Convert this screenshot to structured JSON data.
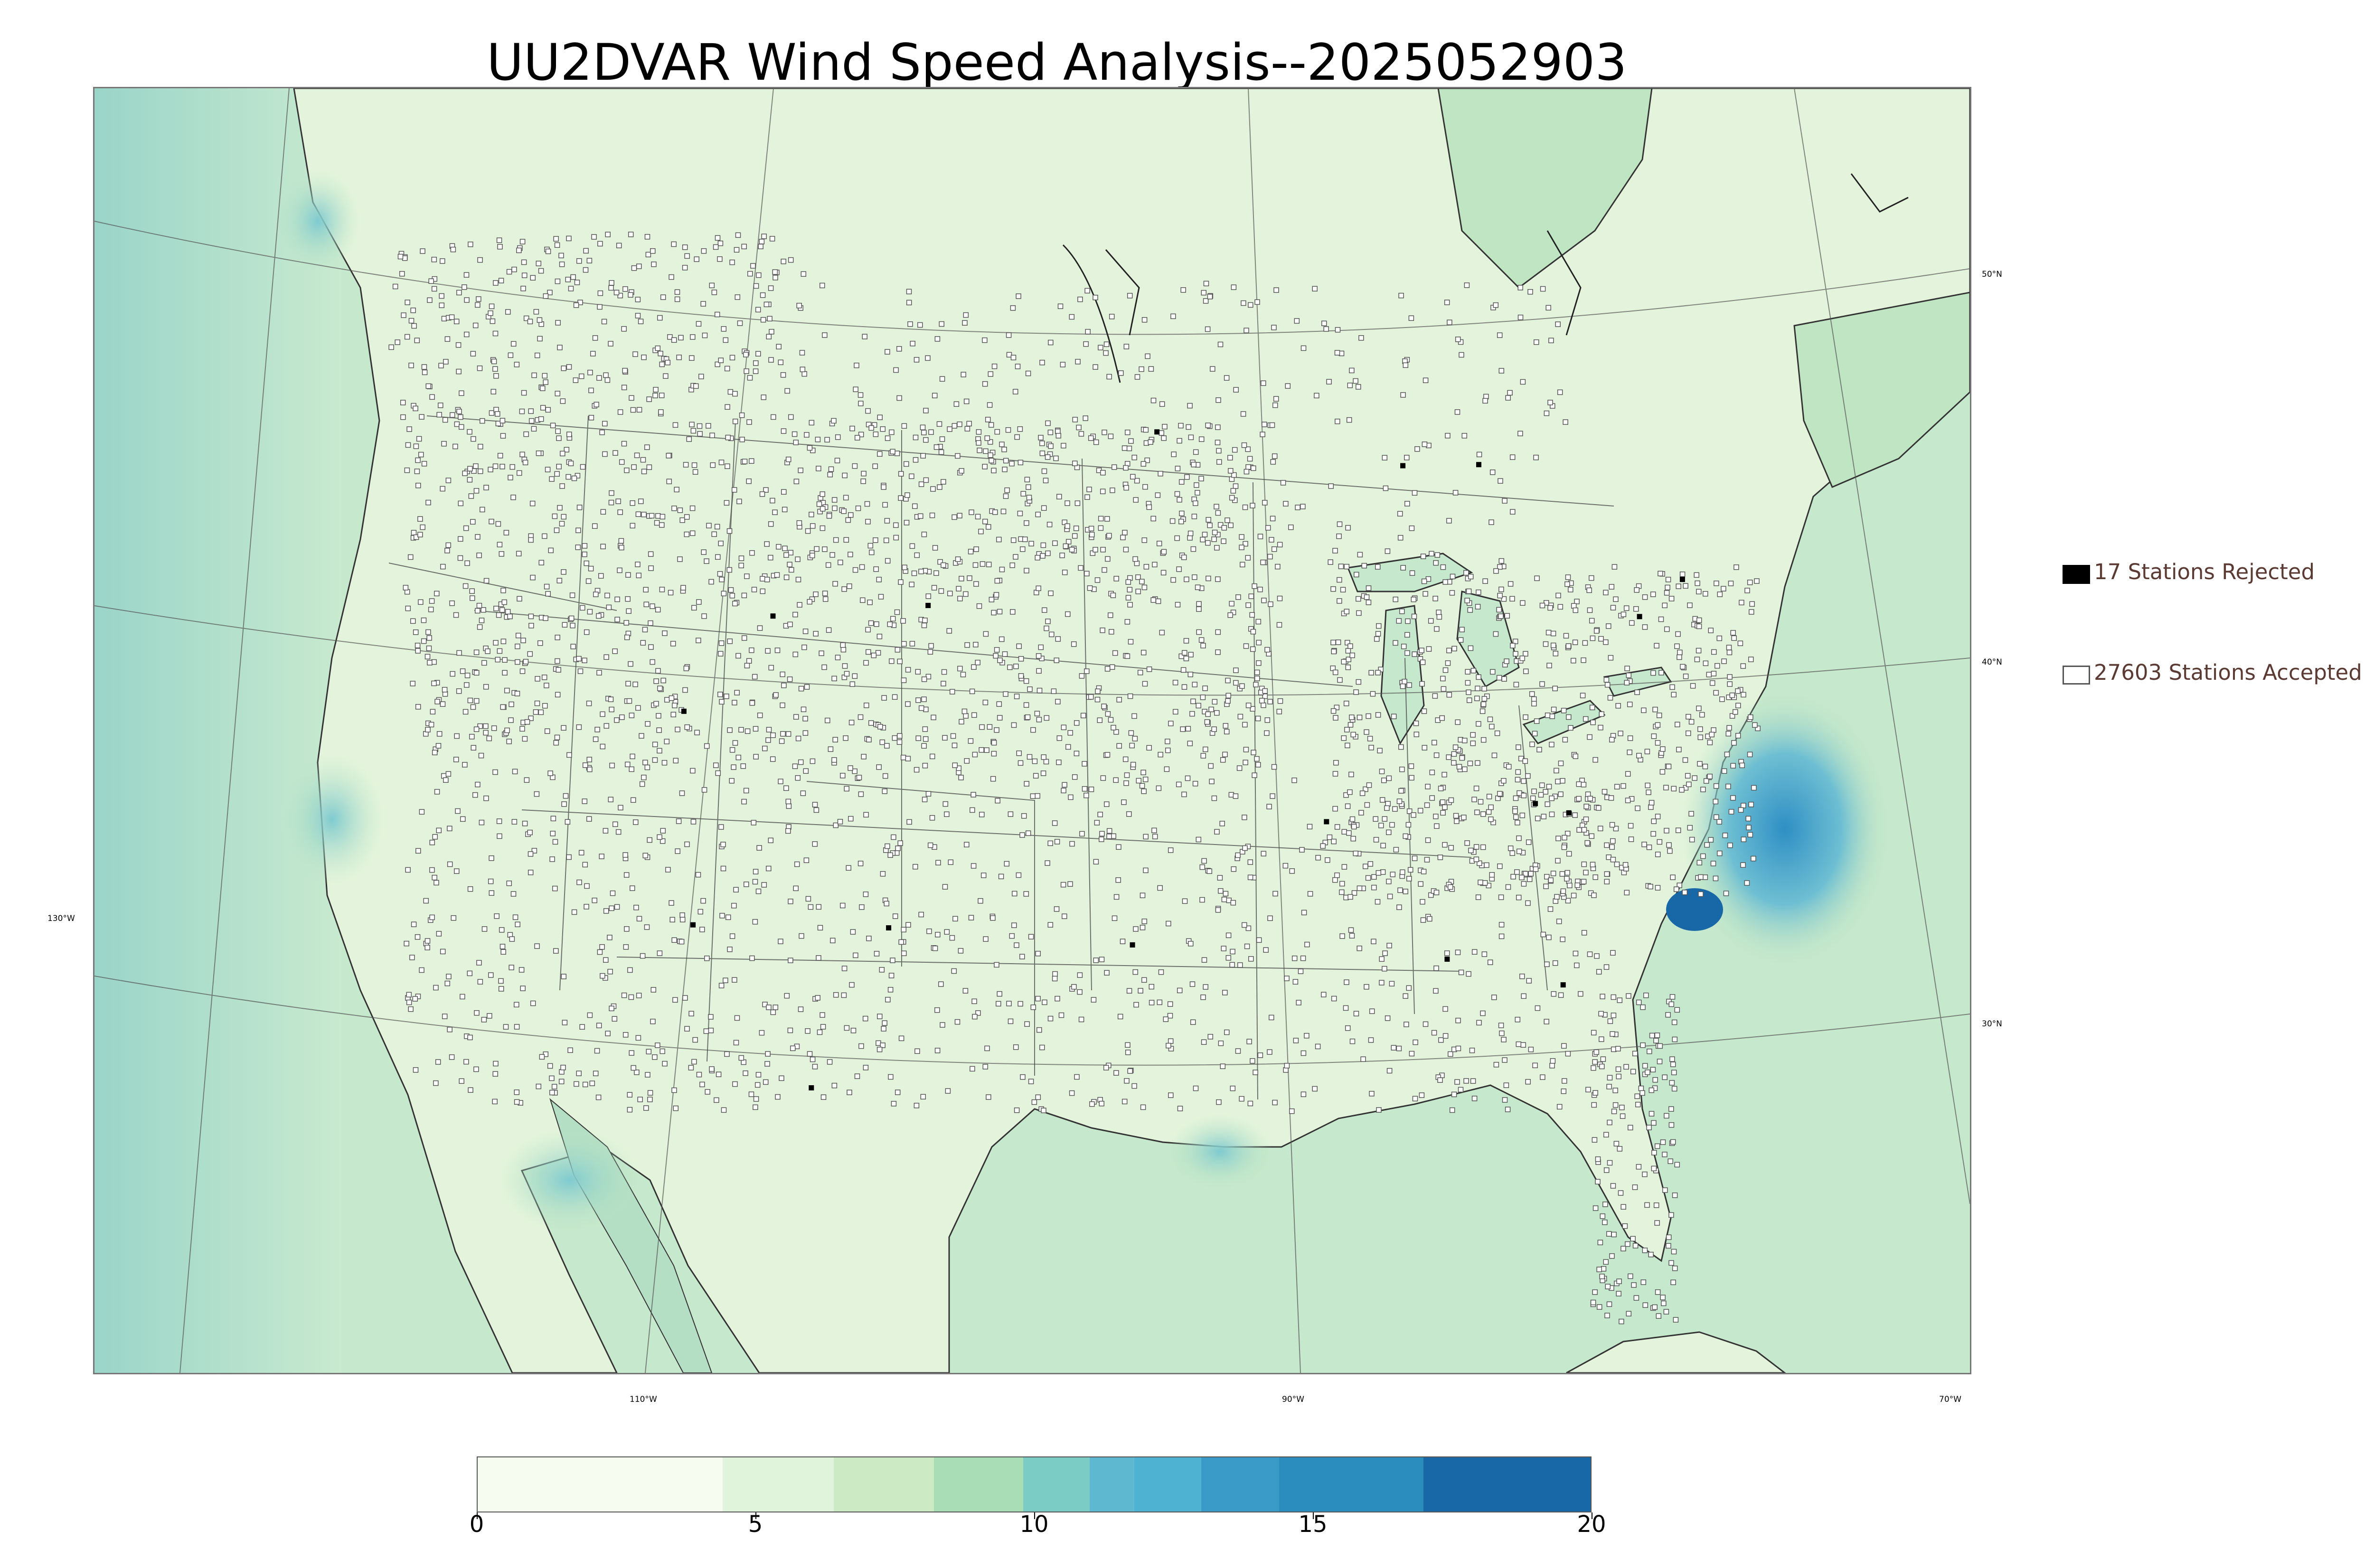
{
  "title": "UU2DVAR Wind Speed Analysis--2025052903",
  "map": {
    "lat_labels": [
      "50°N",
      "40°N",
      "30°N"
    ],
    "lon_labels": [
      "130°W",
      "110°W",
      "90°W",
      "70°W"
    ]
  },
  "legend": {
    "rejected": {
      "label": "17 Stations Rejected",
      "color": "#000000"
    },
    "accepted": {
      "label": "27603 Stations Accepted",
      "color": "#ffffff"
    }
  },
  "colorbar": {
    "ticks": [
      "0",
      "5",
      "10",
      "15",
      "20"
    ],
    "colors": [
      "#f7fcf0",
      "#e0f3db",
      "#ccebc5",
      "#a8ddb5",
      "#7bccc4",
      "#5eb9d0",
      "#4eb3d3",
      "#3a9bc8",
      "#2b8cbe",
      "#1868a8"
    ]
  },
  "colors": {
    "land": "#e4f4dc",
    "ocean": "#bfe5c3",
    "ocean_strong": "#6fbfd2",
    "ocean_max": "#2f8fc4",
    "boundary": "#333333",
    "station": "#ffffff"
  }
}
